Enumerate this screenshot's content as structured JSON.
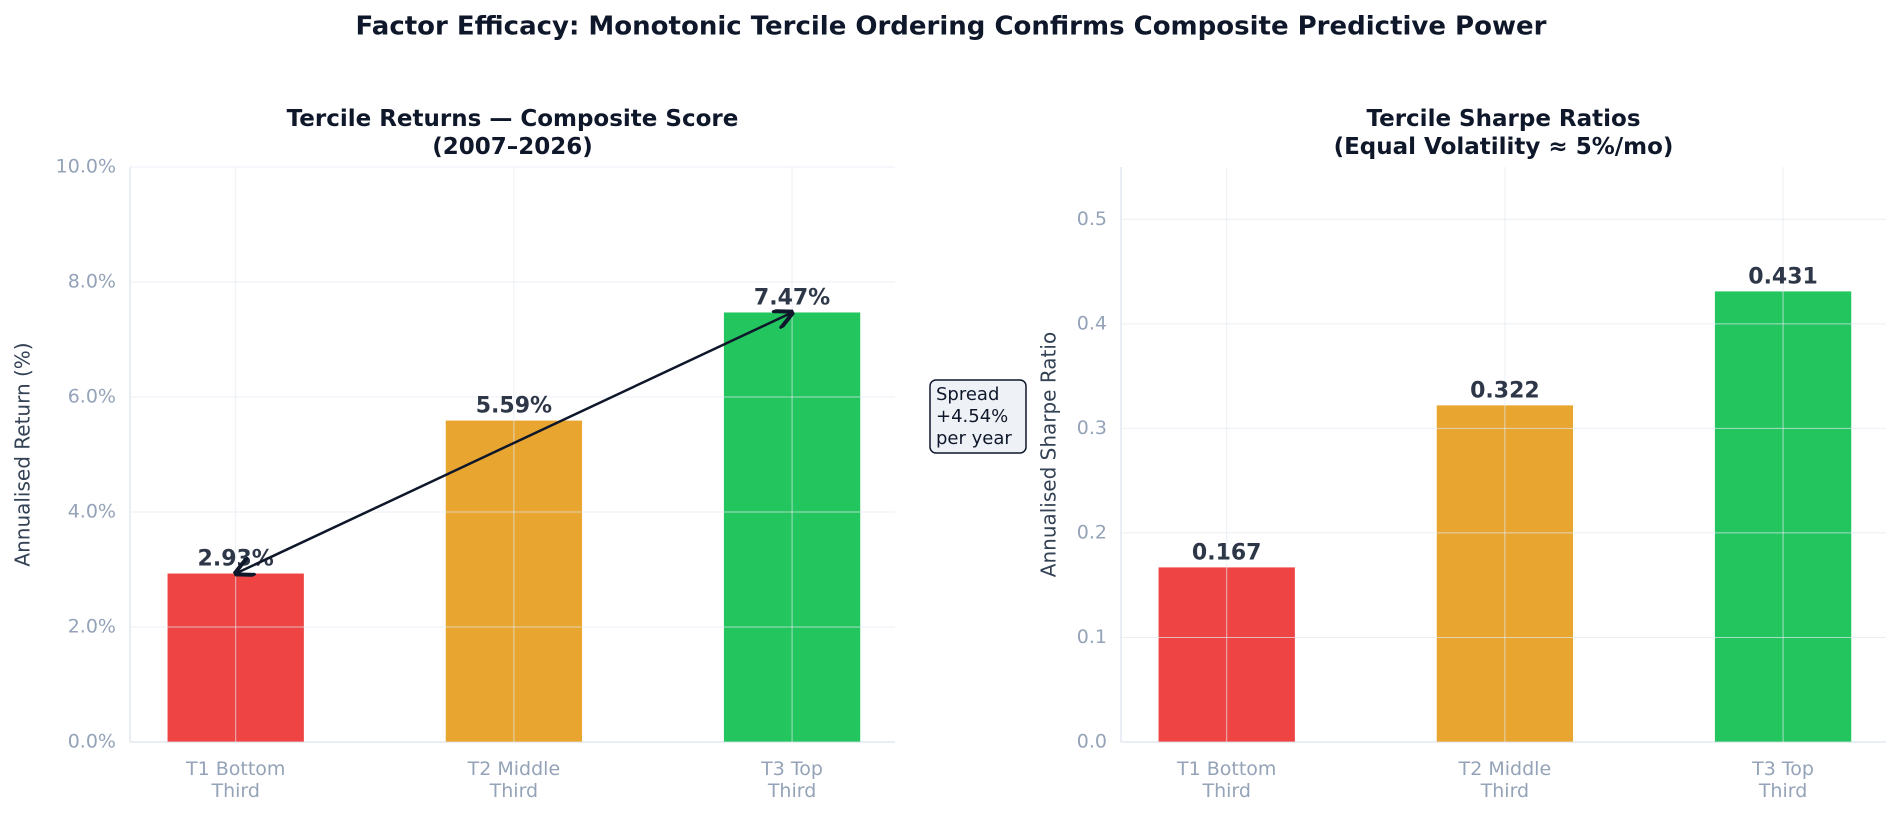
{
  "title": "Factor Efficacy: Monotonic Tercile Ordering Confirms Composite Predictive Power",
  "chart_data": [
    {
      "type": "bar",
      "title": "Tercile Returns — Composite Score\n(2007–2026)",
      "y_label": "Annualised Return (%)",
      "categories": [
        "T1 Bottom\nThird",
        "T2 Middle\nThird",
        "T3 Top\nThird"
      ],
      "values": [
        2.93,
        5.59,
        7.47
      ],
      "value_labels": [
        "2.93%",
        "5.59%",
        "7.47%"
      ],
      "colors": [
        "#ef4444",
        "#e8a530",
        "#22c55e"
      ],
      "ylim": [
        0,
        10
      ],
      "yticks": [
        {
          "value": 0,
          "label": "0.0%"
        },
        {
          "value": 2,
          "label": "2.0%"
        },
        {
          "value": 4,
          "label": "4.0%"
        },
        {
          "value": 6,
          "label": "6.0%"
        },
        {
          "value": 8,
          "label": "8.0%"
        },
        {
          "value": 10,
          "label": "10.0%"
        }
      ],
      "grid": true,
      "annotation": "Spread\n+4.54%\nper year"
    },
    {
      "type": "bar",
      "title": "Tercile Sharpe Ratios\n(Equal Volatility ≈ 5%/mo)",
      "y_label": "Annualised Sharpe Ratio",
      "categories": [
        "T1 Bottom\nThird",
        "T2 Middle\nThird",
        "T3 Top\nThird"
      ],
      "values": [
        0.167,
        0.322,
        0.431
      ],
      "colors": [
        "#ef4444",
        "#e8a530",
        "#22c55e"
      ],
      "ylim": [
        0,
        0.55
      ],
      "yticks": [
        {
          "value": 0,
          "label": "0.0"
        },
        0.1,
        0.2,
        0.3,
        0.4,
        0.5
      ],
      "grid": true
    }
  ]
}
